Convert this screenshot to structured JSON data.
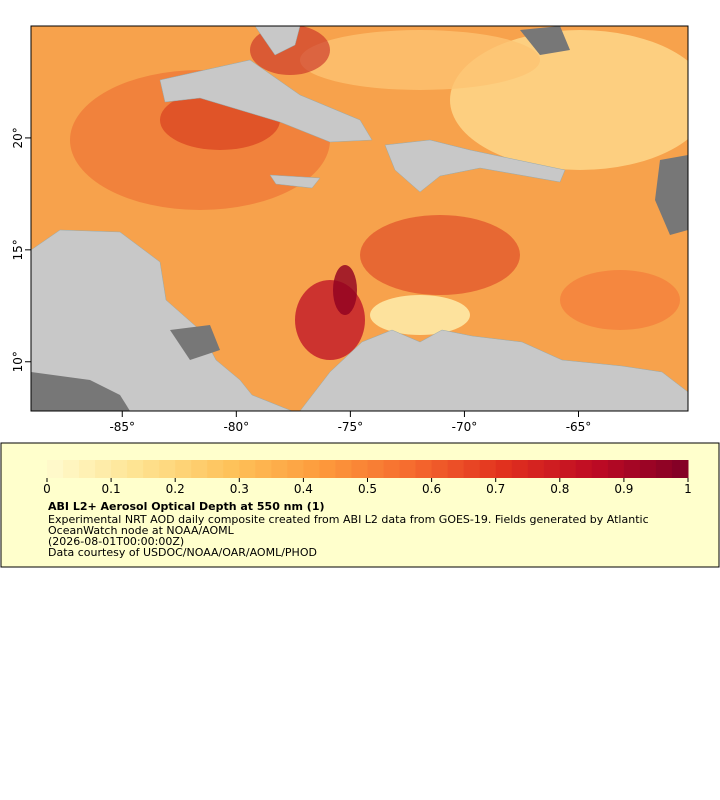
{
  "map": {
    "xlim": [
      -89,
      -60.2
    ],
    "ylim": [
      7.8,
      25
    ],
    "xticks": [
      {
        "value": -85,
        "label": "-85°"
      },
      {
        "value": -80,
        "label": "-80°"
      },
      {
        "value": -75,
        "label": "-75°"
      },
      {
        "value": -70,
        "label": "-70°"
      },
      {
        "value": -65,
        "label": "-65°"
      }
    ],
    "yticks": [
      {
        "value": 10,
        "label": "10°"
      },
      {
        "value": 15,
        "label": "15°"
      },
      {
        "value": 20,
        "label": "20°"
      }
    ]
  },
  "colorbar": {
    "range": [
      0,
      1
    ],
    "ticks": [
      0,
      0.1,
      0.2,
      0.3,
      0.4,
      0.5,
      0.6,
      0.7,
      0.8,
      0.9,
      1
    ],
    "colors": [
      "#fffbd0",
      "#fee391",
      "#fec25a",
      "#fd9a3c",
      "#f56a2e",
      "#e1301e",
      "#bd0a24",
      "#800026"
    ]
  },
  "legend": {
    "title": "ABI L2+ Aerosol Optical Depth at 550 nm (1)",
    "lines": [
      "Experimental NRT AOD daily composite created from ABI L2 data from GOES-19. Fields generated by Atlantic",
      "OceanWatch node at NOAA/AOML",
      "(2026-08-01T00:00:00Z)",
      "Data courtesy of USDOC/NOAA/OAR/AOML/PHOD"
    ]
  }
}
